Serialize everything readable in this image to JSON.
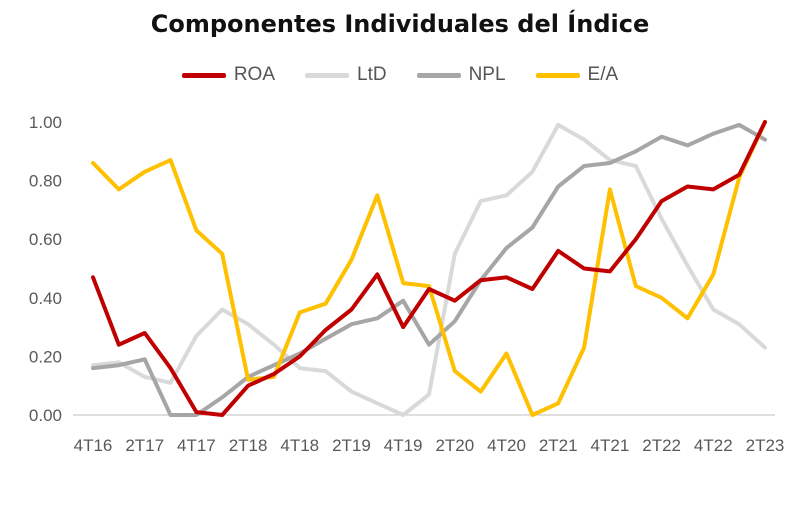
{
  "chart_data": {
    "type": "line",
    "title": "Componentes Individuales del Índice",
    "xlabel": "",
    "ylabel": "",
    "ylim": [
      0,
      1
    ],
    "yticks": [
      "0.00",
      "0.20",
      "0.40",
      "0.60",
      "0.80",
      "1.00"
    ],
    "yticks_values": [
      0,
      0.2,
      0.4,
      0.6,
      0.8,
      1.0
    ],
    "x": [
      "4T16",
      "1T17",
      "2T17",
      "3T17",
      "4T17",
      "1T18",
      "2T18",
      "3T18",
      "4T18",
      "1T19",
      "2T19",
      "3T19",
      "4T19",
      "1T20",
      "2T20",
      "3T20",
      "4T20",
      "1T21",
      "2T21",
      "3T21",
      "4T21",
      "1T22",
      "2T22",
      "3T22",
      "4T22",
      "1T23",
      "2T23"
    ],
    "xtick_labels": [
      "4T16",
      "2T17",
      "4T17",
      "2T18",
      "4T18",
      "2T19",
      "4T19",
      "2T20",
      "4T20",
      "2T21",
      "4T21",
      "2T22",
      "4T22",
      "2T23"
    ],
    "xtick_indices": [
      0,
      2,
      4,
      6,
      8,
      10,
      12,
      14,
      16,
      18,
      20,
      22,
      24,
      26
    ],
    "legend_position": "top-center",
    "series": [
      {
        "name": "ROA",
        "color": "#C00000",
        "values": [
          0.47,
          0.24,
          0.28,
          0.16,
          0.01,
          0.0,
          0.1,
          0.14,
          0.2,
          0.29,
          0.36,
          0.48,
          0.3,
          0.43,
          0.39,
          0.46,
          0.47,
          0.43,
          0.56,
          0.5,
          0.49,
          0.6,
          0.73,
          0.78,
          0.77,
          0.82,
          1.0
        ]
      },
      {
        "name": "LtD",
        "color": "#D9D9D9",
        "values": [
          0.17,
          0.18,
          0.13,
          0.11,
          0.27,
          0.36,
          0.31,
          0.24,
          0.16,
          0.15,
          0.08,
          0.04,
          0.0,
          0.07,
          0.55,
          0.73,
          0.75,
          0.83,
          0.99,
          0.94,
          0.87,
          0.85,
          0.67,
          0.51,
          0.36,
          0.31,
          0.23
        ]
      },
      {
        "name": "NPL",
        "color": "#A6A6A6",
        "values": [
          0.16,
          0.17,
          0.19,
          0.0,
          0.0,
          0.06,
          0.13,
          0.17,
          0.21,
          0.26,
          0.31,
          0.33,
          0.39,
          0.24,
          0.32,
          0.46,
          0.57,
          0.64,
          0.78,
          0.85,
          0.86,
          0.9,
          0.95,
          0.92,
          0.96,
          0.99,
          0.94
        ]
      },
      {
        "name": "E/A",
        "color": "#FFC000",
        "values": [
          0.86,
          0.77,
          0.83,
          0.87,
          0.63,
          0.55,
          0.12,
          0.13,
          0.35,
          0.38,
          0.53,
          0.75,
          0.45,
          0.44,
          0.15,
          0.08,
          0.21,
          0.0,
          0.04,
          0.23,
          0.77,
          0.44,
          0.4,
          0.33,
          0.48,
          0.81,
          1.0
        ]
      }
    ]
  }
}
